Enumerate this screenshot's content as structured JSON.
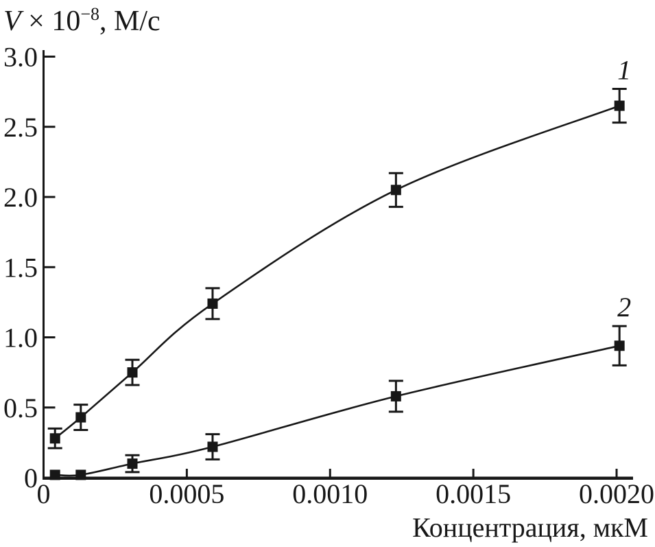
{
  "figure": {
    "background": "#ffffff",
    "ink_color": "#171717"
  },
  "y_axis_title": {
    "variable": "V",
    "multiplier": " × 10",
    "exponent": "−8",
    "unit": ", М/с"
  },
  "x_axis_title": "Концентрация, мкМ",
  "chart_data": {
    "type": "line",
    "title": "",
    "xlabel": "Концентрация, мкМ",
    "ylabel": "V × 10⁻⁸, М/с",
    "xlim": [
      0,
      0.00206
    ],
    "ylim": [
      0,
      3.0
    ],
    "grid": false,
    "legend": "inline-numeric-labels-at-right",
    "marker": "filled-square",
    "error_bars": true,
    "x_ticks": [
      {
        "v": 0,
        "label": "0"
      },
      {
        "v": 0.0005,
        "label": "0.0005"
      },
      {
        "v": 0.001,
        "label": "0.0010"
      },
      {
        "v": 0.0015,
        "label": "0.0015"
      },
      {
        "v": 0.002,
        "label": "0.0020"
      }
    ],
    "y_ticks": [
      {
        "v": 0,
        "label": "0"
      },
      {
        "v": 0.5,
        "label": "0.5"
      },
      {
        "v": 1,
        "label": "1.0"
      },
      {
        "v": 1.5,
        "label": "1.5"
      },
      {
        "v": 2,
        "label": "2.0"
      },
      {
        "v": 2.5,
        "label": "2.5"
      },
      {
        "v": 3,
        "label": "3.0"
      }
    ],
    "x": [
      4e-05,
      0.00013,
      0.00031,
      0.00059,
      0.00123,
      0.00201
    ],
    "series": [
      {
        "name": "curve-1",
        "label": "1",
        "values": [
          0.28,
          0.43,
          0.75,
          1.24,
          2.05,
          2.65
        ],
        "errors": [
          0.07,
          0.09,
          0.09,
          0.11,
          0.12,
          0.12
        ],
        "color": "#171717"
      },
      {
        "name": "curve-2",
        "label": "2",
        "values": [
          0.02,
          0.02,
          0.1,
          0.22,
          0.58,
          0.94
        ],
        "errors": [
          0,
          0,
          0.06,
          0.09,
          0.11,
          0.14
        ],
        "color": "#171717"
      }
    ]
  }
}
